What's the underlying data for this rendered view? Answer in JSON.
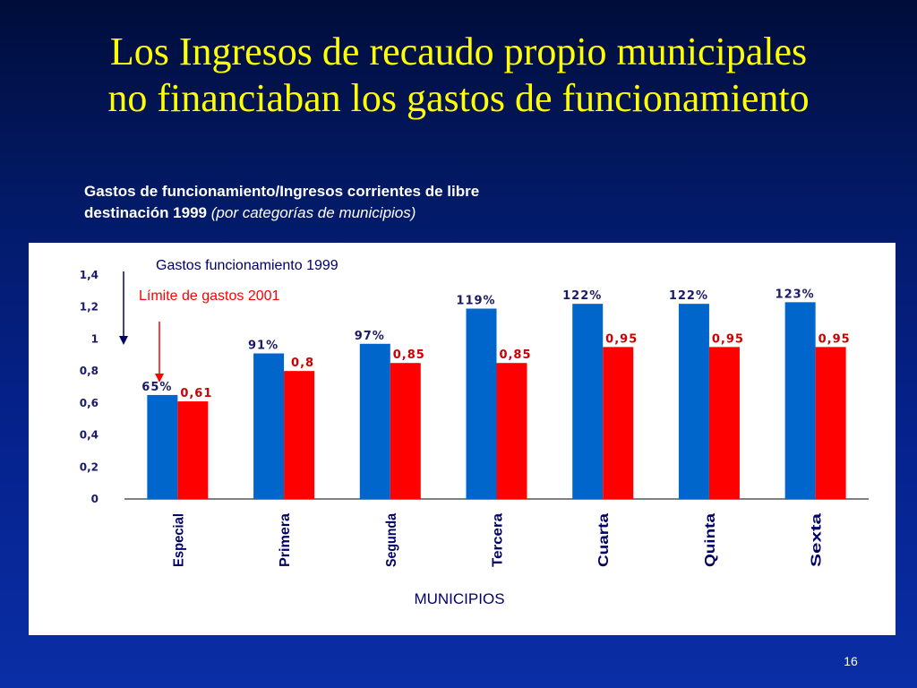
{
  "slide": {
    "title_line1": "Los Ingresos de recaudo propio municipales",
    "title_line2": "no financiaban los gastos de funcionamiento",
    "heading_bold_line1": "Gastos de funcionamiento/Ingresos corrientes de libre",
    "heading_bold_line2": "destinación 1999",
    "heading_italic": "(por categorías de municipios)",
    "page_number": "16"
  },
  "colors": {
    "title": "#ffff00",
    "background": "#05218a",
    "gastos_series": "#0066cc",
    "limite_series": "#ff0000"
  },
  "chart_data": {
    "type": "bar",
    "xlabel": "MUNICIPIOS",
    "ylabel": "",
    "ylim": [
      0,
      1.4
    ],
    "yticks": [
      "0",
      "0,2",
      "0,4",
      "0,6",
      "0,8",
      "1",
      "1,2",
      "1,4"
    ],
    "grid": false,
    "categories": [
      "Especial",
      "Primera",
      "Segunda",
      "Tercera",
      "Cuarta",
      "Quinta",
      "Sexta"
    ],
    "series": [
      {
        "name": "Gastos funcionamiento 1999",
        "values": [
          0.65,
          0.91,
          0.97,
          1.19,
          1.22,
          1.22,
          1.23
        ],
        "labels": [
          "65%",
          "91%",
          "97%",
          "119%",
          "122%",
          "122%",
          "123%"
        ]
      },
      {
        "name": "Límite de gastos 2001",
        "values": [
          0.61,
          0.8,
          0.85,
          0.85,
          0.95,
          0.95,
          0.95
        ],
        "labels": [
          "0,61",
          "0,8",
          "0,85",
          "0,85",
          "0,95",
          "0,95",
          "0,95"
        ]
      }
    ]
  }
}
